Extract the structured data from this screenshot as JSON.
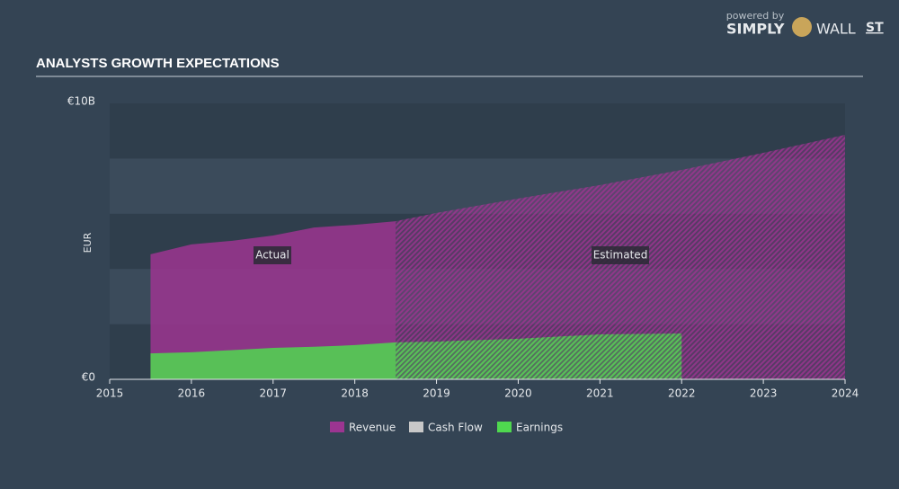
{
  "branding": {
    "powered_by": "powered by",
    "simply": "SIMPLY",
    "wall": "WALL",
    "st": "ST"
  },
  "chart_data": {
    "type": "area",
    "title": "ANALYSTS GROWTH EXPECTATIONS",
    "y_label": "EUR",
    "annotations": [
      "Actual",
      "Estimated"
    ],
    "forecast_start": 2018.5,
    "x": [
      2015.5,
      2016,
      2016.5,
      2017,
      2017.5,
      2018,
      2018.5,
      2019,
      2020,
      2021,
      2022,
      2023,
      2024
    ],
    "series": [
      {
        "name": "Revenue",
        "color": "#9c3591",
        "values": [
          4.53,
          4.89,
          5.02,
          5.21,
          5.5,
          5.6,
          5.73,
          6.03,
          6.55,
          7.04,
          7.59,
          8.21,
          8.86
        ]
      },
      {
        "name": "Cash Flow",
        "color": "#c8c8c8",
        "values": [
          null,
          null,
          null,
          null,
          null,
          null,
          null,
          null,
          null,
          null,
          null,
          null,
          null
        ]
      },
      {
        "name": "Earnings",
        "color": "#4fd84f",
        "values": [
          0.94,
          0.98,
          1.06,
          1.14,
          1.18,
          1.24,
          1.34,
          1.37,
          1.47,
          1.63,
          1.66,
          null,
          null
        ]
      }
    ],
    "xlim": [
      2015,
      2024
    ],
    "xticks": [
      2015,
      2016,
      2017,
      2018,
      2019,
      2020,
      2021,
      2022,
      2023,
      2024
    ],
    "ylim": [
      0,
      10
    ],
    "yticks": [
      {
        "value": 0,
        "label": "€0"
      },
      {
        "value": 10,
        "label": "€10B"
      }
    ]
  }
}
